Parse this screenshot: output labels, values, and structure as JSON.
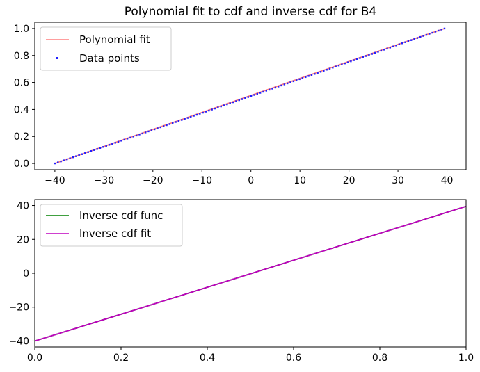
{
  "chart_data": [
    {
      "type": "line",
      "title": "Polynomial fit to cdf and inverse cdf for B4",
      "xlabel": "",
      "ylabel": "",
      "xlim": [
        -44.1,
        43.9
      ],
      "ylim": [
        -0.046,
        1.046
      ],
      "grid": false,
      "legend_position": "top-left",
      "x_ticks": [
        -40,
        -30,
        -20,
        -10,
        0,
        10,
        20,
        30,
        40
      ],
      "x_tick_labels": [
        "−40",
        "−30",
        "−20",
        "−10",
        "0",
        "10",
        "20",
        "30",
        "40"
      ],
      "y_ticks": [
        0.0,
        0.2,
        0.4,
        0.6,
        0.8,
        1.0
      ],
      "y_tick_labels": [
        "0.0",
        "0.2",
        "0.4",
        "0.6",
        "0.8",
        "1.0"
      ],
      "series": [
        {
          "name": "Polynomial fit",
          "kind": "line",
          "color": "#ff7f7f",
          "x": [
            -40,
            -30,
            -20,
            -10,
            0,
            10,
            20,
            30,
            39.5
          ],
          "y": [
            0.0,
            0.126,
            0.252,
            0.378,
            0.504,
            0.63,
            0.756,
            0.882,
            1.0
          ]
        },
        {
          "name": "Data points",
          "kind": "scatter",
          "color": "#1f1fff",
          "x_range": [
            -40,
            39.5
          ],
          "y_range": [
            0.0,
            1.0
          ],
          "count": 130
        }
      ]
    },
    {
      "type": "line",
      "title": "",
      "xlabel": "",
      "ylabel": "",
      "xlim": [
        0.0,
        1.0
      ],
      "ylim": [
        -43.5,
        43.5
      ],
      "grid": false,
      "legend_position": "top-left",
      "x_ticks": [
        0.0,
        0.2,
        0.4,
        0.6,
        0.8,
        1.0
      ],
      "x_tick_labels": [
        "0.0",
        "0.2",
        "0.4",
        "0.6",
        "0.8",
        "1.0"
      ],
      "y_ticks": [
        -40,
        -20,
        0,
        20,
        40
      ],
      "y_tick_labels": [
        "−40",
        "−20",
        "0",
        "20",
        "40"
      ],
      "series": [
        {
          "name": "Inverse cdf func",
          "kind": "line",
          "color": "#008000",
          "x": [
            0.0,
            0.25,
            0.5,
            0.75,
            1.0
          ],
          "y": [
            -40.0,
            -20.2,
            -0.3,
            19.6,
            39.5
          ]
        },
        {
          "name": "Inverse cdf fit",
          "kind": "line",
          "color": "#bf00bf",
          "x": [
            0.0,
            0.25,
            0.5,
            0.75,
            1.0
          ],
          "y": [
            -40.0,
            -20.2,
            -0.3,
            19.6,
            39.5
          ]
        }
      ]
    }
  ]
}
